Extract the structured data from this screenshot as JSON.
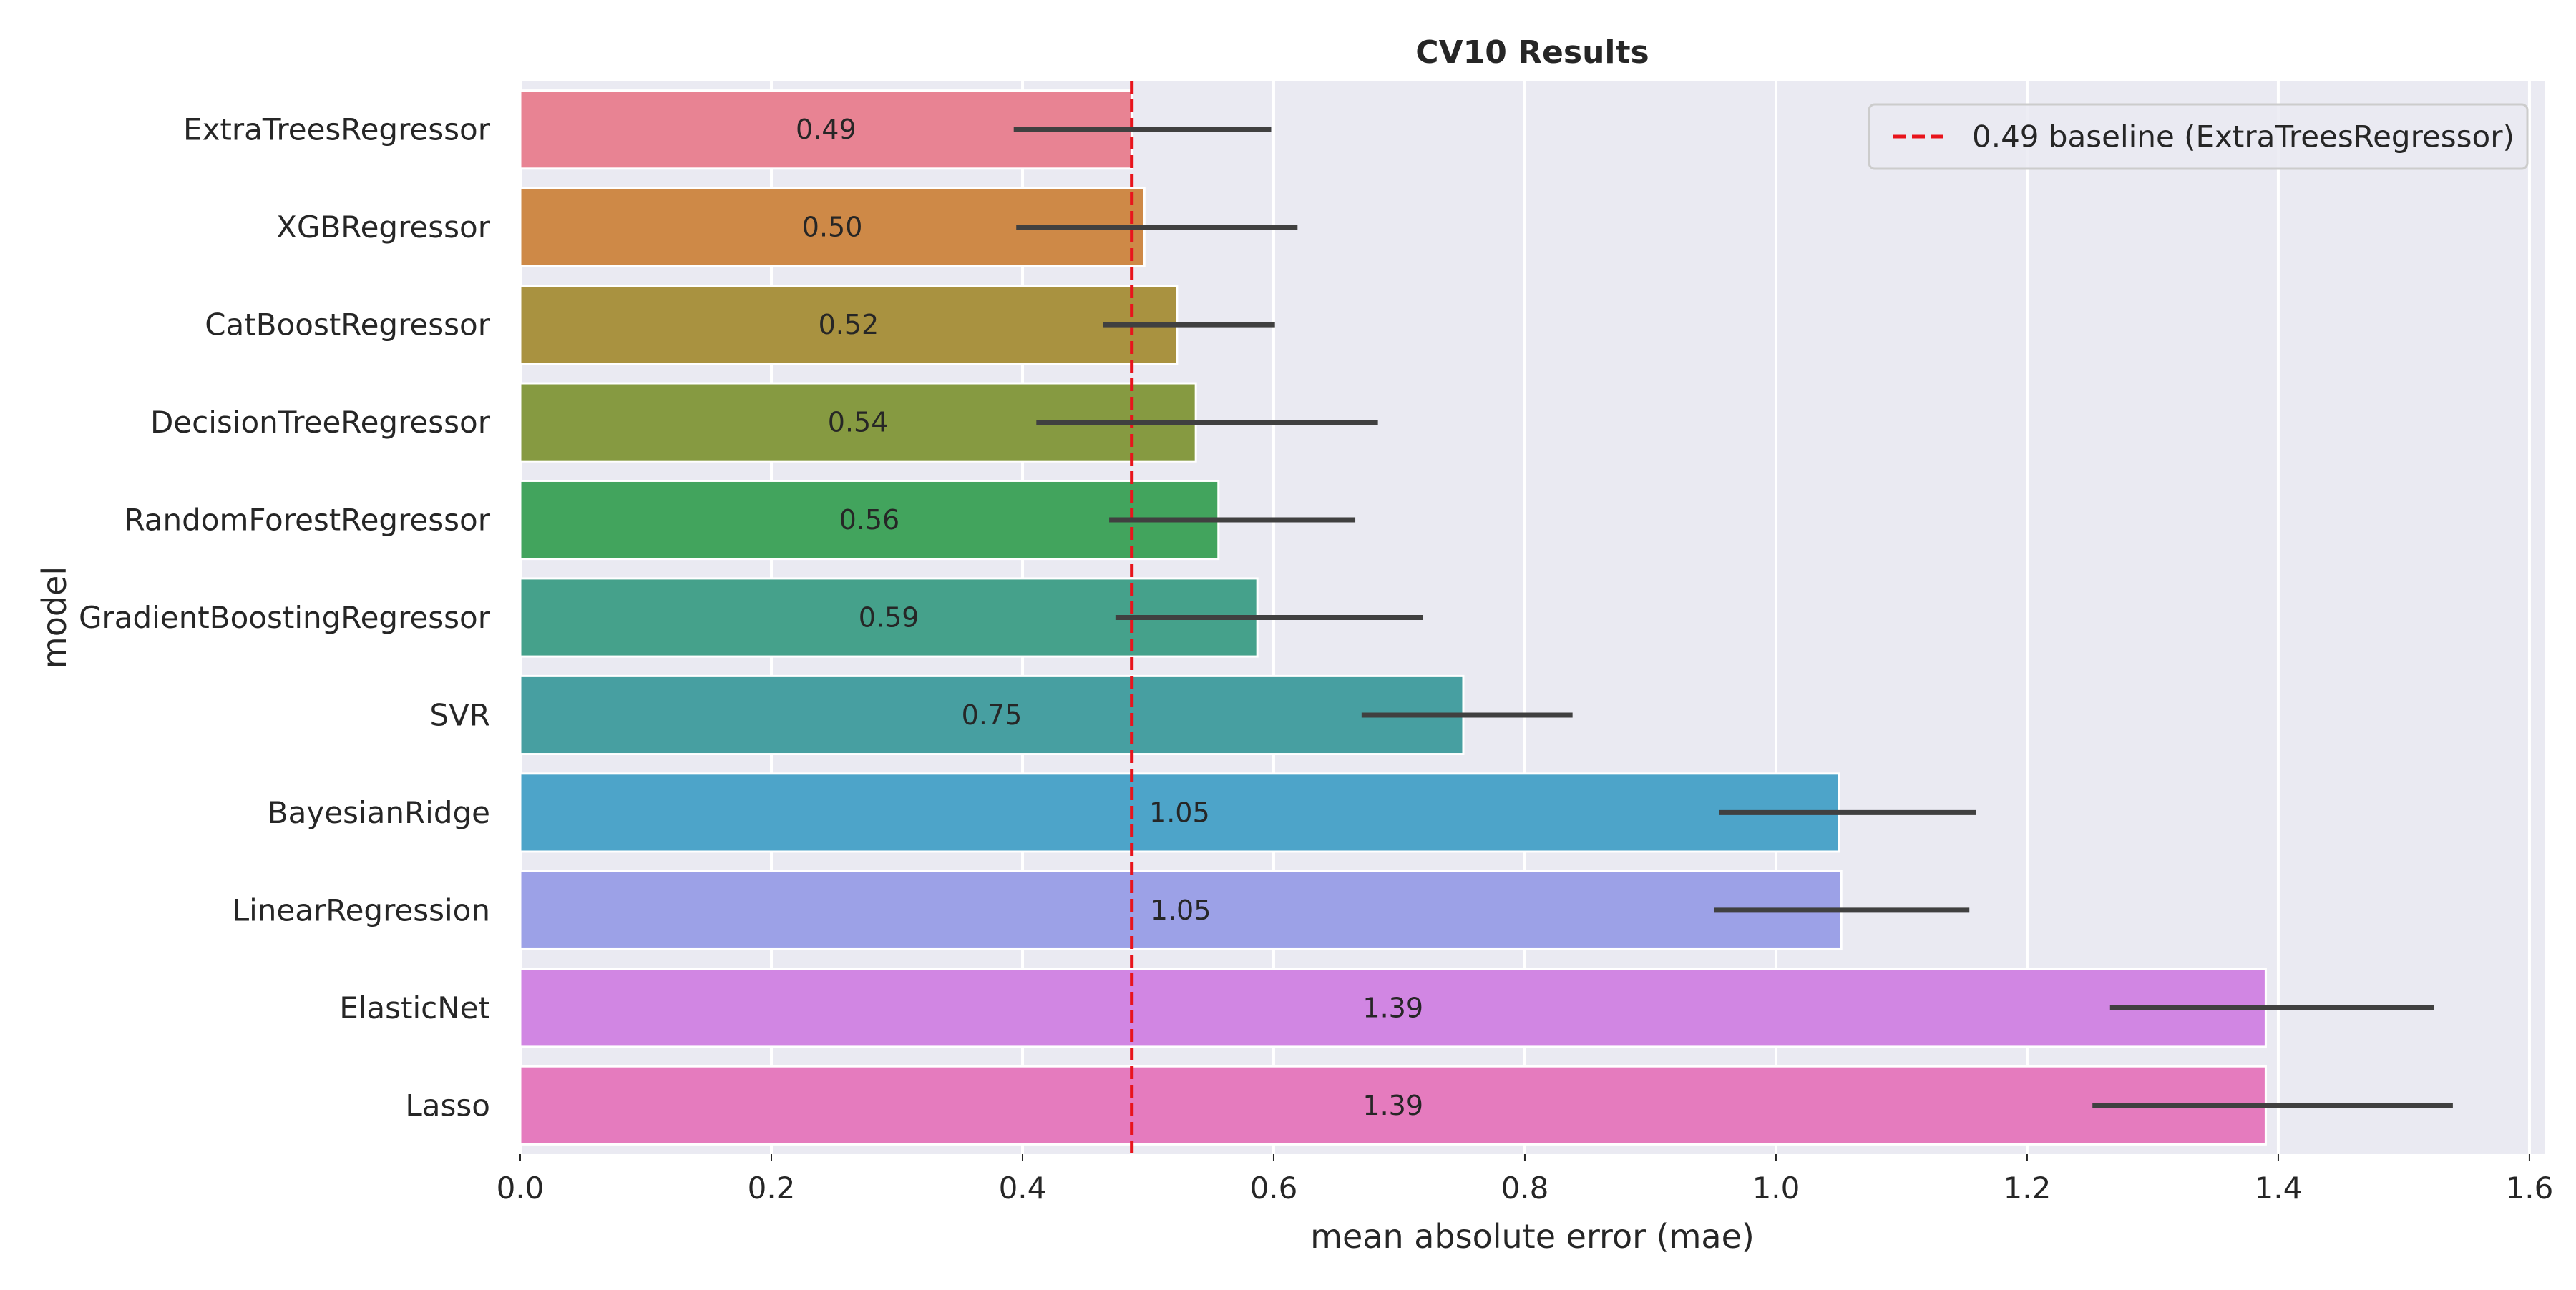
{
  "chart_data": {
    "type": "bar",
    "orientation": "horizontal",
    "title": "CV10 Results",
    "xlabel": "mean absolute error (mae)",
    "ylabel": "model",
    "xlim": [
      0,
      1.612
    ],
    "xticks": [
      0.0,
      0.2,
      0.4,
      0.6,
      0.8,
      1.0,
      1.2,
      1.4,
      1.6
    ],
    "xtick_labels": [
      "0.0",
      "0.2",
      "0.4",
      "0.6",
      "0.8",
      "1.0",
      "1.2",
      "1.4",
      "1.6"
    ],
    "grid": true,
    "legend_position": "top-right",
    "bars": [
      {
        "label": "ExtraTreesRegressor",
        "value": 0.487,
        "value_label": "0.49",
        "ci": [
          0.393,
          0.598
        ],
        "color": "#e88393"
      },
      {
        "label": "XGBRegressor",
        "value": 0.497,
        "value_label": "0.50",
        "ci": [
          0.395,
          0.619
        ],
        "color": "#ce8947"
      },
      {
        "label": "CatBoostRegressor",
        "value": 0.523,
        "value_label": "0.52",
        "ci": [
          0.464,
          0.601
        ],
        "color": "#a99240"
      },
      {
        "label": "DecisionTreeRegressor",
        "value": 0.538,
        "value_label": "0.54",
        "ci": [
          0.411,
          0.683
        ],
        "color": "#869a41"
      },
      {
        "label": "RandomForestRegressor",
        "value": 0.556,
        "value_label": "0.56",
        "ci": [
          0.469,
          0.665
        ],
        "color": "#42a45d"
      },
      {
        "label": "GradientBoostingRegressor",
        "value": 0.587,
        "value_label": "0.59",
        "ci": [
          0.474,
          0.719
        ],
        "color": "#45a18b"
      },
      {
        "label": "SVR",
        "value": 0.751,
        "value_label": "0.75",
        "ci": [
          0.67,
          0.838
        ],
        "color": "#479fa1"
      },
      {
        "label": "BayesianRidge",
        "value": 1.05,
        "value_label": "1.05",
        "ci": [
          0.955,
          1.159
        ],
        "color": "#4da4c9"
      },
      {
        "label": "LinearRegression",
        "value": 1.052,
        "value_label": "1.05",
        "ci": [
          0.951,
          1.154
        ],
        "color": "#9ca1e7"
      },
      {
        "label": "ElasticNet",
        "value": 1.39,
        "value_label": "1.39",
        "ci": [
          1.266,
          1.524
        ],
        "color": "#d186e3"
      },
      {
        "label": "Lasso",
        "value": 1.39,
        "value_label": "1.39",
        "ci": [
          1.252,
          1.539
        ],
        "color": "#e57bbe"
      }
    ],
    "baseline": {
      "value": 0.487,
      "label": "0.49 baseline (ExtraTreesRegressor)",
      "color": "#e8141c",
      "style": "dashed"
    },
    "colors": {
      "background": "#eaeaf2",
      "grid": "#ffffff",
      "errorbar": "#404040",
      "text": "#262626"
    }
  }
}
